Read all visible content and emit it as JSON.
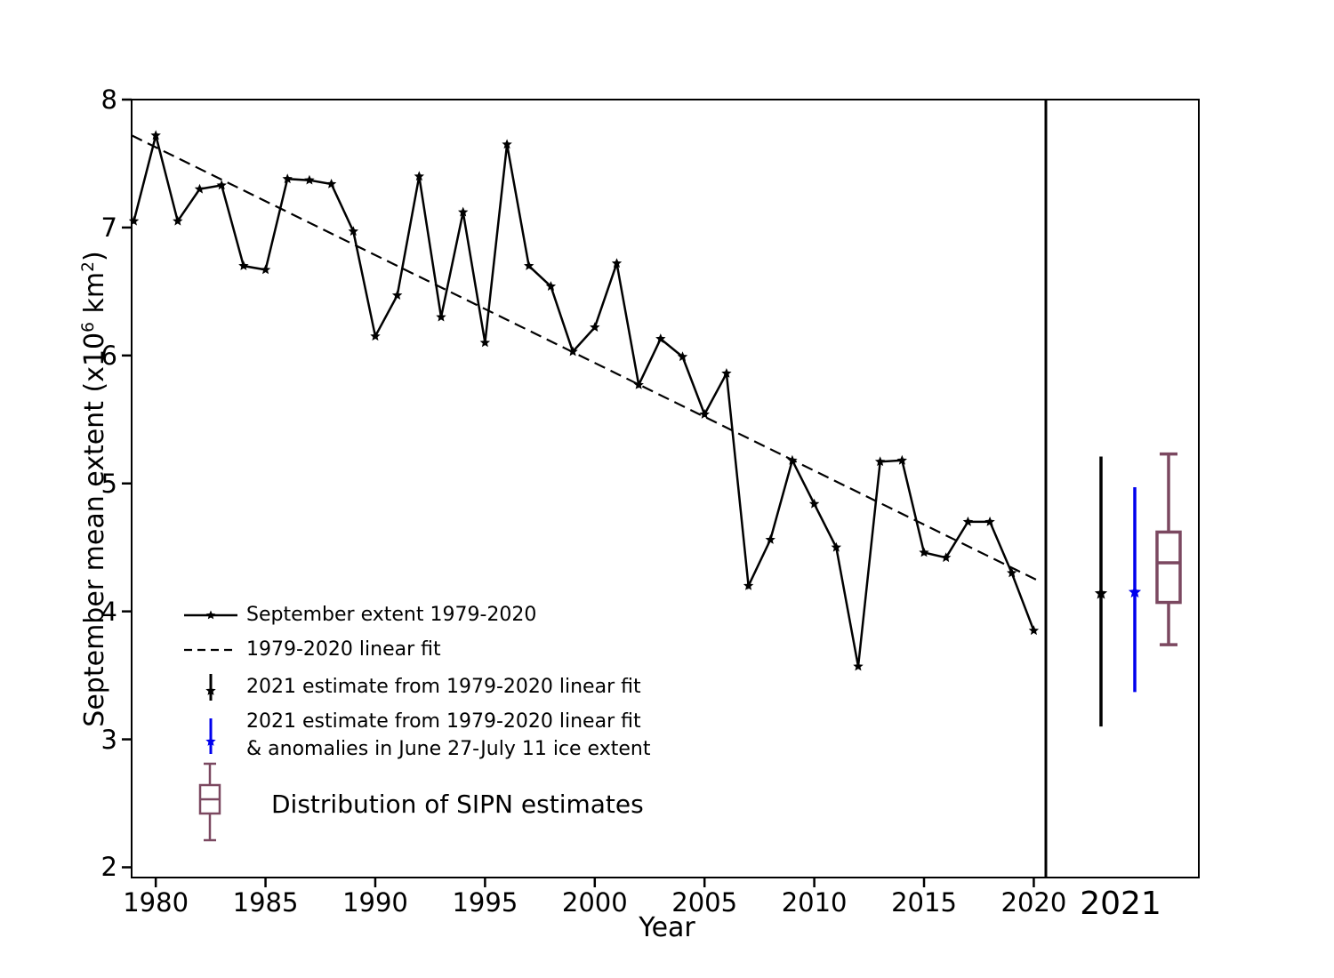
{
  "figure": {
    "background": "#FFFFFF"
  },
  "colors": {
    "axis": "#000000",
    "series_line": "#000000",
    "fit_line": "#000000",
    "estimate_black": "#000000",
    "estimate_blue": "#0000EE",
    "sipn_box": "#7B4860"
  },
  "axes": {
    "x": {
      "label": "Year",
      "ticks": [
        "1980",
        "1985",
        "1990",
        "1995",
        "2000",
        "2005",
        "2010",
        "2015",
        "2020"
      ],
      "tick_values": [
        1980,
        1985,
        1990,
        1995,
        2000,
        2005,
        2010,
        2015,
        2020
      ],
      "panel2_tick_label": "2021"
    },
    "y": {
      "label": {
        "pre": "September mean extent (x10",
        "sup1": "6",
        "mid": " km",
        "sup2": "2",
        "post": ")"
      },
      "ticks": [
        "8",
        "7",
        "6",
        "5",
        "4",
        "3",
        "2"
      ],
      "tick_values": [
        8,
        7,
        6,
        5,
        4,
        3,
        2
      ]
    }
  },
  "legend": {
    "items": [
      {
        "label": "September extent 1979-2020"
      },
      {
        "label": "1979-2020 linear fit"
      },
      {
        "label": "2021 estimate from 1979-2020 linear fit"
      },
      {
        "label_line1": "2021 estimate from 1979-2020 linear fit",
        "label_line2": "& anomalies in June 27-July 11 ice extent"
      },
      {
        "label": "Distribution of SIPN estimates"
      }
    ]
  },
  "chart_data": {
    "type": "line",
    "title": "",
    "xlabel": "Year",
    "ylabel": "September mean extent (x10^6 km^2)",
    "xlim": [
      1978.9,
      2020.55
    ],
    "ylim": [
      1.92,
      8
    ],
    "grid": false,
    "legend_position": "lower-left",
    "series": [
      {
        "name": "September extent 1979-2020",
        "type": "line-with-star-markers",
        "color": "#000000",
        "x": [
          1979,
          1980,
          1981,
          1982,
          1983,
          1984,
          1985,
          1986,
          1987,
          1988,
          1989,
          1990,
          1991,
          1992,
          1993,
          1994,
          1995,
          1996,
          1997,
          1998,
          1999,
          2000,
          2001,
          2002,
          2003,
          2004,
          2005,
          2006,
          2007,
          2008,
          2009,
          2010,
          2011,
          2012,
          2013,
          2014,
          2015,
          2016,
          2017,
          2018,
          2019,
          2020
        ],
        "y": [
          7.05,
          7.72,
          7.05,
          7.3,
          7.33,
          6.7,
          6.67,
          7.38,
          7.37,
          7.34,
          6.97,
          6.15,
          6.47,
          7.4,
          6.3,
          7.12,
          6.1,
          7.65,
          6.7,
          6.54,
          6.03,
          6.22,
          6.72,
          5.77,
          6.13,
          5.99,
          5.54,
          5.86,
          4.2,
          4.56,
          5.18,
          4.84,
          4.5,
          3.57,
          5.17,
          5.18,
          4.46,
          4.42,
          4.7,
          4.7,
          4.3,
          3.85
        ]
      },
      {
        "name": "1979-2020 linear fit",
        "type": "dashed-line",
        "color": "#000000",
        "x": [
          1978.9,
          2020.2
        ],
        "y": [
          7.72,
          4.24
        ]
      }
    ],
    "panel_2021": {
      "tick_label": "2021",
      "estimates": [
        {
          "name": "2021 estimate from 1979-2020 linear fit",
          "color": "#000000",
          "low": 3.1,
          "center": 4.14,
          "high": 5.21
        },
        {
          "name": "2021 estimate from 1979-2020 linear fit & anomalies in June 27-July 11 ice extent",
          "color": "#0000EE",
          "low": 3.37,
          "center": 4.15,
          "high": 4.97
        }
      ],
      "sipn_distribution": {
        "name": "Distribution of SIPN estimates",
        "color": "#7B4860",
        "whisker_low": 3.74,
        "q1": 4.07,
        "median": 4.38,
        "q3": 4.62,
        "whisker_high": 5.23
      }
    }
  }
}
